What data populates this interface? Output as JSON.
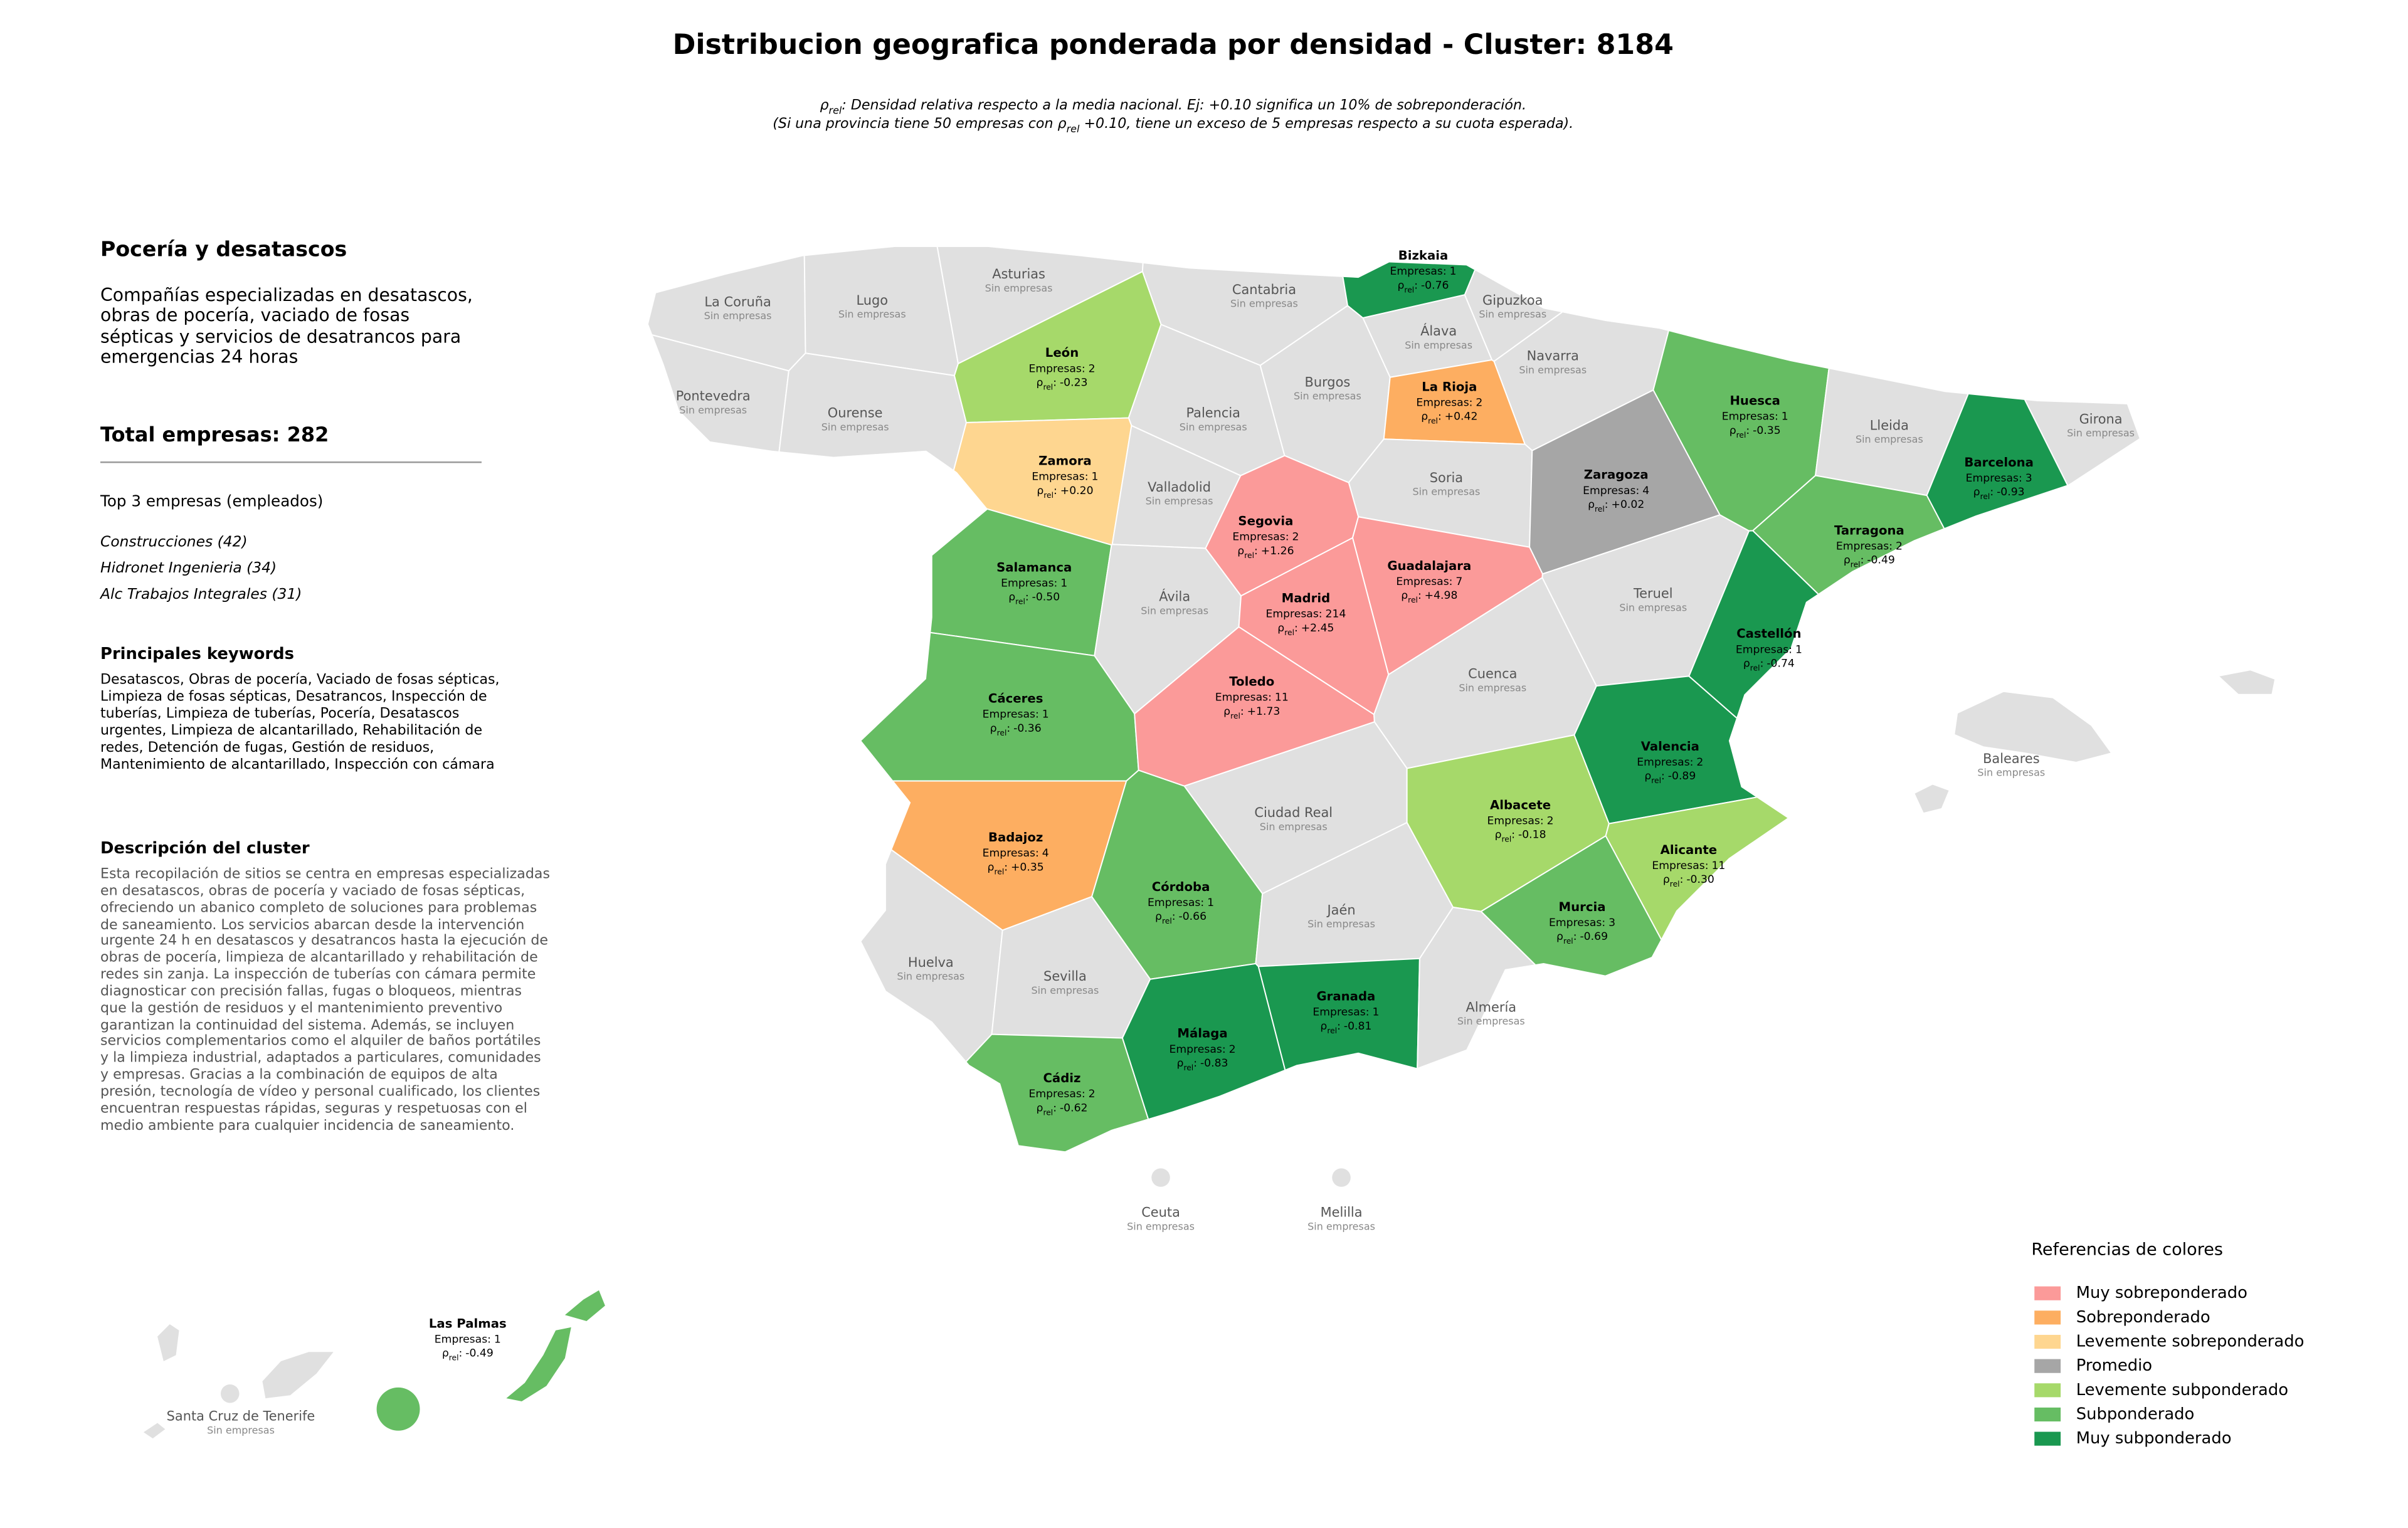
{
  "title": "Distribucion geografica ponderada por densidad - Cluster: 8184",
  "subtitle": [
    [
      {
        "text": "ρ"
      },
      {
        "text": "rel",
        "subscript": true
      },
      {
        "text": ": Densidad relativa respecto a la media nacional. Ej: +0.10 significa un 10% de sobreponderación."
      }
    ],
    [
      {
        "text": "(Si una provincia tiene 50 empresas con "
      },
      {
        "text": "ρ"
      },
      {
        "text": "rel",
        "subscript": true
      },
      {
        "text": " +0.10, tiene un exceso de 5 empresas respecto a su cuota esperada)."
      }
    ]
  ],
  "sidebar": {
    "heading": "Pocería y desatascos",
    "description": "Compañías especializadas en desatascos, obras de pocería, vaciado de fosas sépticas y servicios de desatrancos para emergencias 24 horas",
    "total_label": "Total empresas:",
    "total": 282,
    "top_heading": "Top 3 empresas (empleados)",
    "top": [
      "Construcciones (42)",
      "Hidronet Ingenieria (34)",
      "Alc Trabajos Integrales (31)"
    ],
    "keywords_heading": "Principales keywords",
    "keywords": "Desatascos, Obras de pocería, Vaciado de fosas sépticas, Limpieza de fosas sépticas, Desatrancos, Inspección de tuberías, Limpieza de tuberías, Pocería, Desatascos urgentes, Limpieza de alcantarillado, Rehabilitación de redes, Detención de fugas, Gestión de residuos, Mantenimiento de alcantarillado, Inspección con cámara",
    "cluster_heading": "Descripción del cluster",
    "cluster_text": "Esta recopilación de sitios se centra en empresas especializadas en desatascos, obras de pocería y vaciado de fosas sépticas, ofreciendo un abanico completo de soluciones para problemas de saneamiento. Los servicios abarcan desde la intervención urgente 24 h en desatascos y desatrancos hasta la ejecución de obras de pocería, limpieza de alcantarillado y rehabilitación de redes sin zanja. La inspección de tuberías con cámara permite diagnosticar con precisión fallas, fugas o bloqueos, mientras que la gestión de residuos y el mantenimiento preventivo garantizan la continuidad del sistema. Además, se incluyen servicios complementarios como el alquiler de baños portátiles y la limpieza industrial, adaptados a particulares, comunidades y empresas. Gracias a la combinación de equipos de alta presión, tecnología de vídeo y personal cualificado, los clientes encuentran respuestas rápidas, seguras y respetuosas con el medio ambiente para cualquier incidencia de saneamiento."
  },
  "map": {
    "companies_label": "Empresas:",
    "rho_symbol": "ρ",
    "rho_subscript": "rel",
    "rho_separator": ":",
    "no_companies": "Sin empresas",
    "provinces": [
      {
        "name": "La Coruña"
      },
      {
        "name": "Lugo"
      },
      {
        "name": "Asturias"
      },
      {
        "name": "Cantabria"
      },
      {
        "name": "Bizkaia",
        "companies": 1,
        "rho": "-0.76",
        "category": 6
      },
      {
        "name": "Gipuzkoa"
      },
      {
        "name": "Álava"
      },
      {
        "name": "Navarra"
      },
      {
        "name": "Pontevedra"
      },
      {
        "name": "Ourense"
      },
      {
        "name": "León",
        "companies": 2,
        "rho": "-0.23",
        "category": 4
      },
      {
        "name": "Palencia"
      },
      {
        "name": "Burgos"
      },
      {
        "name": "La Rioja",
        "companies": 2,
        "rho": "+0.42",
        "category": 1
      },
      {
        "name": "Huesca",
        "companies": 1,
        "rho": "-0.35",
        "category": 5
      },
      {
        "name": "Lleida"
      },
      {
        "name": "Girona"
      },
      {
        "name": "Barcelona",
        "companies": 3,
        "rho": "-0.93",
        "category": 6
      },
      {
        "name": "Zamora",
        "companies": 1,
        "rho": "+0.20",
        "category": 2
      },
      {
        "name": "Valladolid"
      },
      {
        "name": "Soria"
      },
      {
        "name": "Zaragoza",
        "companies": 4,
        "rho": "+0.02",
        "category": 3
      },
      {
        "name": "Tarragona",
        "companies": 2,
        "rho": "-0.49",
        "category": 5
      },
      {
        "name": "Segovia",
        "companies": 2,
        "rho": "+1.26",
        "category": 0
      },
      {
        "name": "Salamanca",
        "companies": 1,
        "rho": "-0.50",
        "category": 5
      },
      {
        "name": "Ávila"
      },
      {
        "name": "Guadalajara",
        "companies": 7,
        "rho": "+4.98",
        "category": 0
      },
      {
        "name": "Madrid",
        "companies": 214,
        "rho": "+2.45",
        "category": 0
      },
      {
        "name": "Teruel"
      },
      {
        "name": "Castellón",
        "companies": 1,
        "rho": "-0.74",
        "category": 6
      },
      {
        "name": "Cáceres",
        "companies": 1,
        "rho": "-0.36",
        "category": 5
      },
      {
        "name": "Toledo",
        "companies": 11,
        "rho": "+1.73",
        "category": 0
      },
      {
        "name": "Cuenca"
      },
      {
        "name": "Valencia",
        "companies": 2,
        "rho": "-0.89",
        "category": 6
      },
      {
        "name": "Badajoz",
        "companies": 4,
        "rho": "+0.35",
        "category": 1
      },
      {
        "name": "Ciudad Real"
      },
      {
        "name": "Albacete",
        "companies": 2,
        "rho": "-0.18",
        "category": 4
      },
      {
        "name": "Alicante",
        "companies": 11,
        "rho": "-0.30",
        "category": 4
      },
      {
        "name": "Córdoba",
        "companies": 1,
        "rho": "-0.66",
        "category": 5
      },
      {
        "name": "Jaén"
      },
      {
        "name": "Murcia",
        "companies": 3,
        "rho": "-0.69",
        "category": 5
      },
      {
        "name": "Huelva"
      },
      {
        "name": "Sevilla"
      },
      {
        "name": "Granada",
        "companies": 1,
        "rho": "-0.81",
        "category": 6
      },
      {
        "name": "Almería"
      },
      {
        "name": "Málaga",
        "companies": 2,
        "rho": "-0.83",
        "category": 6
      },
      {
        "name": "Cádiz",
        "companies": 2,
        "rho": "-0.62",
        "category": 5
      },
      {
        "name": "Baleares"
      },
      {
        "name": "Ceuta"
      },
      {
        "name": "Melilla"
      },
      {
        "name": "Las Palmas",
        "companies": 1,
        "rho": "-0.49",
        "category": 5
      },
      {
        "name": "Santa Cruz de Tenerife"
      }
    ]
  },
  "legend": {
    "title": "Referencias de colores",
    "items": [
      {
        "label": "Muy sobreponderado",
        "color": "#fb9a99"
      },
      {
        "label": "Sobreponderado",
        "color": "#fdae61"
      },
      {
        "label": "Levemente sobreponderado",
        "color": "#fed690"
      },
      {
        "label": "Promedio",
        "color": "#a6a6a6"
      },
      {
        "label": "Levemente subponderado",
        "color": "#a6d96a"
      },
      {
        "label": "Subponderado",
        "color": "#66bd63"
      },
      {
        "label": "Muy subponderado",
        "color": "#1a9850"
      }
    ]
  }
}
